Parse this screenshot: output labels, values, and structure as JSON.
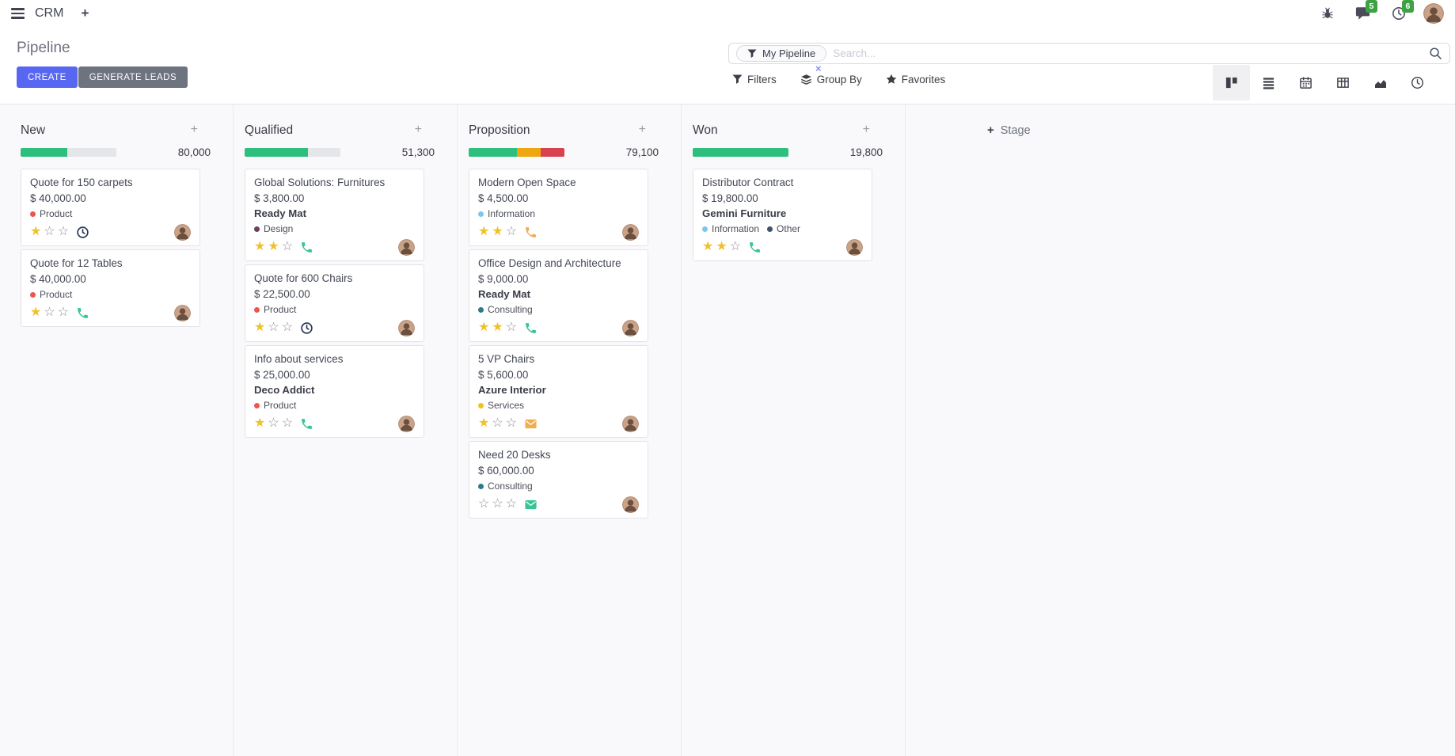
{
  "navbar": {
    "app_name": "CRM",
    "message_badge": "5",
    "activity_badge": "6"
  },
  "control_panel": {
    "title": "Pipeline",
    "create_label": "CREATE",
    "generate_leads_label": "GENERATE LEADS",
    "search": {
      "facet": "My Pipeline",
      "placeholder": "Search...",
      "remove_symbol": "×"
    },
    "filter_menus": {
      "filters": "Filters",
      "group_by": "Group By",
      "favorites": "Favorites"
    },
    "view_switcher_icons": [
      "kanban-view-icon",
      "list-view-icon",
      "calendar-view-icon",
      "pivot-view-icon",
      "graph-view-icon",
      "activity-view-icon"
    ],
    "active_view": "kanban"
  },
  "colors": {
    "accent": "#5867F2",
    "success": "#2EBE7E",
    "warning": "#EFA711",
    "danger": "#D8414F",
    "badge_green": "#3EA144",
    "star_gold": "#EFC228"
  },
  "board": {
    "add_stage_label": "Stage",
    "columns": [
      {
        "name": "New",
        "amount": "80,000",
        "progress": [
          {
            "color": "#2EBE7E",
            "pct": 49
          }
        ],
        "cards": [
          {
            "title": "Quote for 150 carpets",
            "amount": "$ 40,000.00",
            "tags": [
              {
                "color": "#E9584F",
                "label": "Product"
              }
            ],
            "stars": 1,
            "activity": {
              "icon": "clock-icon",
              "color": "#2B3956"
            }
          },
          {
            "title": "Quote for 12 Tables",
            "amount": "$ 40,000.00",
            "tags": [
              {
                "color": "#E9584F",
                "label": "Product"
              }
            ],
            "stars": 1,
            "activity": {
              "icon": "phone-icon",
              "color": "#36C593"
            }
          }
        ]
      },
      {
        "name": "Qualified",
        "amount": "51,300",
        "progress": [
          {
            "color": "#2EBE7E",
            "pct": 66
          }
        ],
        "cards": [
          {
            "title": "Global Solutions: Furnitures",
            "amount": "$ 3,800.00",
            "company": "Ready Mat",
            "tags": [
              {
                "color": "#6E3F5F",
                "label": "Design"
              }
            ],
            "stars": 2,
            "activity": {
              "icon": "phone-icon",
              "color": "#36C593"
            }
          },
          {
            "title": "Quote for 600 Chairs",
            "amount": "$ 22,500.00",
            "tags": [
              {
                "color": "#E9584F",
                "label": "Product"
              }
            ],
            "stars": 1,
            "activity": {
              "icon": "clock-icon",
              "color": "#2B3956"
            }
          },
          {
            "title": "Info about services",
            "amount": "$ 25,000.00",
            "company": "Deco Addict",
            "tags": [
              {
                "color": "#E9584F",
                "label": "Product"
              }
            ],
            "stars": 1,
            "activity": {
              "icon": "phone-icon",
              "color": "#36C593"
            }
          }
        ]
      },
      {
        "name": "Proposition",
        "amount": "79,100",
        "progress": [
          {
            "color": "#2EBE7E",
            "pct": 50
          },
          {
            "color": "#EFA711",
            "pct": 25
          },
          {
            "color": "#D8414F",
            "pct": 25
          }
        ],
        "cards": [
          {
            "title": "Modern Open Space",
            "amount": "$ 4,500.00",
            "tags": [
              {
                "color": "#7FC6EC",
                "label": "Information"
              }
            ],
            "stars": 2,
            "activity": {
              "icon": "phone-icon",
              "color": "#F2A85C"
            }
          },
          {
            "title": "Office Design and Architecture",
            "amount": "$ 9,000.00",
            "company": "Ready Mat",
            "tags": [
              {
                "color": "#2E7A8C",
                "label": "Consulting"
              }
            ],
            "stars": 2,
            "activity": {
              "icon": "phone-icon",
              "color": "#36C593"
            }
          },
          {
            "title": "5 VP Chairs",
            "amount": "$ 5,600.00",
            "company": "Azure Interior",
            "tags": [
              {
                "color": "#EFC228",
                "label": "Services"
              }
            ],
            "stars": 1,
            "activity": {
              "icon": "envelope-icon",
              "color": "#F0AE4E"
            }
          },
          {
            "title": "Need 20 Desks",
            "amount": "$ 60,000.00",
            "tags": [
              {
                "color": "#2E7A8C",
                "label": "Consulting"
              }
            ],
            "stars": 0,
            "activity": {
              "icon": "envelope-icon",
              "color": "#36C593"
            }
          }
        ]
      },
      {
        "name": "Won",
        "amount": "19,800",
        "progress": [
          {
            "color": "#2EBE7E",
            "pct": 100
          }
        ],
        "cards": [
          {
            "title": "Distributor Contract",
            "amount": "$ 19,800.00",
            "company": "Gemini Furniture",
            "tags": [
              {
                "color": "#7FC6EC",
                "label": "Information"
              },
              {
                "color": "#40516B",
                "label": "Other"
              }
            ],
            "stars": 2,
            "activity": {
              "icon": "phone-icon",
              "color": "#36C593"
            }
          }
        ]
      }
    ]
  }
}
